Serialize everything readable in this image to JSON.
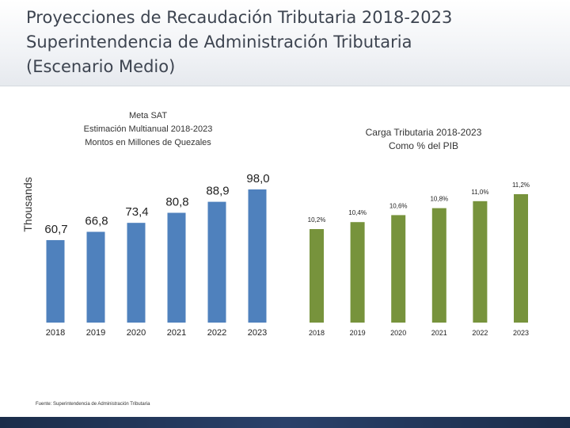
{
  "slide": {
    "title_line1": "Proyecciones de Recaudación Tributaria 2018-2023",
    "title_line2": "Superintendencia de Administración Tributaria",
    "title_line3": "(Escenario Medio)",
    "source": "Fuente: Superintendencia de Administración Tributaria"
  },
  "colors": {
    "left_bars": "#4f81bd",
    "right_bars": "#77933c",
    "title": "#3d4450"
  },
  "chart_data": [
    {
      "type": "bar",
      "title_lines": [
        "Meta SAT",
        "Estimación Multianual 2018-2023",
        "Montos en Millones de Quezales"
      ],
      "ylabel": "Thousands",
      "xlabel": "",
      "categories": [
        "2018",
        "2019",
        "2020",
        "2021",
        "2022",
        "2023"
      ],
      "values": [
        60.7,
        66.8,
        73.4,
        80.8,
        88.9,
        98.0
      ],
      "labels": [
        "60,7",
        "66,8",
        "73,4",
        "80,8",
        "88,9",
        "98,0"
      ],
      "ylim": [
        0,
        98
      ],
      "grid": false,
      "legend": "none"
    },
    {
      "type": "bar",
      "title_lines": [
        "Carga Tributaria 2018-2023",
        "Como % del PIB"
      ],
      "ylabel": "",
      "xlabel": "",
      "categories": [
        "2018",
        "2019",
        "2020",
        "2021",
        "2022",
        "2023"
      ],
      "values": [
        10.2,
        10.4,
        10.6,
        10.8,
        11.0,
        11.2
      ],
      "labels": [
        "10,2%",
        "10,4%",
        "10,6%",
        "10,8%",
        "11,0%",
        "11,2%"
      ],
      "ylim": [
        7.52,
        11.2
      ],
      "grid": false,
      "legend": "none"
    }
  ]
}
